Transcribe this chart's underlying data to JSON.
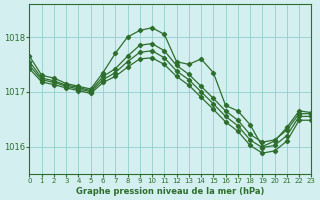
{
  "title": "Graphe pression niveau de la mer (hPa)",
  "background_color": "#d4efef",
  "line_color": "#2d6e2d",
  "xlim": [
    0,
    23
  ],
  "ylim": [
    1015.5,
    1018.6
  ],
  "yticks": [
    1016,
    1017,
    1018
  ],
  "xticks": [
    0,
    1,
    2,
    3,
    4,
    5,
    6,
    7,
    8,
    9,
    10,
    11,
    12,
    13,
    14,
    15,
    16,
    17,
    18,
    19,
    20,
    21,
    22,
    23
  ],
  "series": [
    {
      "x": [
        0,
        1,
        2,
        3,
        4,
        5,
        6,
        7,
        8,
        9,
        10,
        11,
        12,
        13,
        14,
        15,
        16,
        17,
        18,
        19,
        20,
        21,
        22,
        23
      ],
      "y": [
        1017.65,
        1017.3,
        1017.25,
        1017.15,
        1017.1,
        1017.05,
        1017.35,
        1017.7,
        1018.0,
        1018.12,
        1018.17,
        1018.05,
        1017.55,
        1017.5,
        1017.6,
        1017.35,
        1016.75,
        1016.65,
        1016.4,
        1016.0,
        1016.1,
        1016.35,
        1016.65,
        1016.62
      ]
    },
    {
      "x": [
        0,
        1,
        2,
        3,
        4,
        5,
        6,
        7,
        8,
        9,
        10,
        11,
        12,
        13,
        14,
        15,
        16,
        17,
        18,
        19,
        20,
        21,
        22,
        23
      ],
      "y": [
        1017.55,
        1017.25,
        1017.2,
        1017.12,
        1017.08,
        1017.02,
        1017.28,
        1017.42,
        1017.65,
        1017.85,
        1017.88,
        1017.75,
        1017.48,
        1017.32,
        1017.1,
        1016.88,
        1016.65,
        1016.48,
        1016.22,
        1016.08,
        1016.12,
        1016.3,
        1016.6,
        1016.6
      ]
    },
    {
      "x": [
        0,
        1,
        2,
        3,
        4,
        5,
        6,
        7,
        8,
        9,
        10,
        11,
        12,
        13,
        14,
        15,
        16,
        17,
        18,
        19,
        20,
        21,
        22,
        23
      ],
      "y": [
        1017.48,
        1017.22,
        1017.17,
        1017.1,
        1017.05,
        1017.0,
        1017.22,
        1017.35,
        1017.55,
        1017.72,
        1017.75,
        1017.62,
        1017.38,
        1017.22,
        1017.0,
        1016.78,
        1016.55,
        1016.38,
        1016.12,
        1015.98,
        1016.02,
        1016.2,
        1016.55,
        1016.55
      ]
    },
    {
      "x": [
        0,
        1,
        2,
        3,
        4,
        5,
        6,
        7,
        8,
        9,
        10,
        11,
        12,
        13,
        14,
        15,
        16,
        17,
        18,
        19,
        20,
        21,
        22,
        23
      ],
      "y": [
        1017.42,
        1017.18,
        1017.13,
        1017.07,
        1017.02,
        1016.97,
        1017.17,
        1017.28,
        1017.45,
        1017.6,
        1017.62,
        1017.5,
        1017.28,
        1017.12,
        1016.9,
        1016.68,
        1016.45,
        1016.28,
        1016.02,
        1015.88,
        1015.92,
        1016.1,
        1016.48,
        1016.48
      ]
    }
  ]
}
